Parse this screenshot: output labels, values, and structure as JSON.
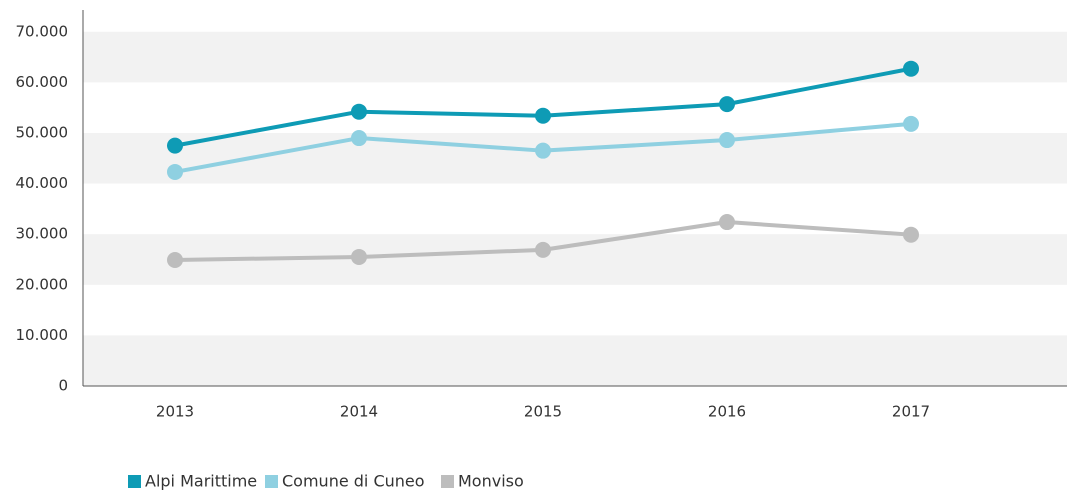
{
  "chart_data": {
    "type": "line",
    "categories": [
      "2013",
      "2014",
      "2015",
      "2016",
      "2017"
    ],
    "series": [
      {
        "name": "Alpi Marittime",
        "color": "#0e9bb5",
        "values": [
          47500,
          54200,
          53400,
          55700,
          62700
        ]
      },
      {
        "name": "Comune di Cuneo",
        "color": "#8fd0e1",
        "values": [
          42300,
          49000,
          46500,
          48600,
          51800
        ]
      },
      {
        "name": "Monviso",
        "color": "#bdbdbd",
        "values": [
          24900,
          25500,
          26900,
          32400,
          29900
        ]
      }
    ],
    "ylim": [
      0,
      74300
    ],
    "yticks": [
      0,
      {
        "value": 10000,
        "label": "10.000"
      },
      {
        "value": 20000,
        "label": "20.000"
      },
      {
        "value": 30000,
        "label": "30.000"
      },
      {
        "value": 40000,
        "label": "40.000"
      },
      {
        "value": 50000,
        "label": "50.000"
      },
      {
        "value": 60000,
        "label": "60.000"
      },
      {
        "value": 70000,
        "label": "70.000"
      }
    ],
    "grid": true,
    "legend": "bottom"
  }
}
